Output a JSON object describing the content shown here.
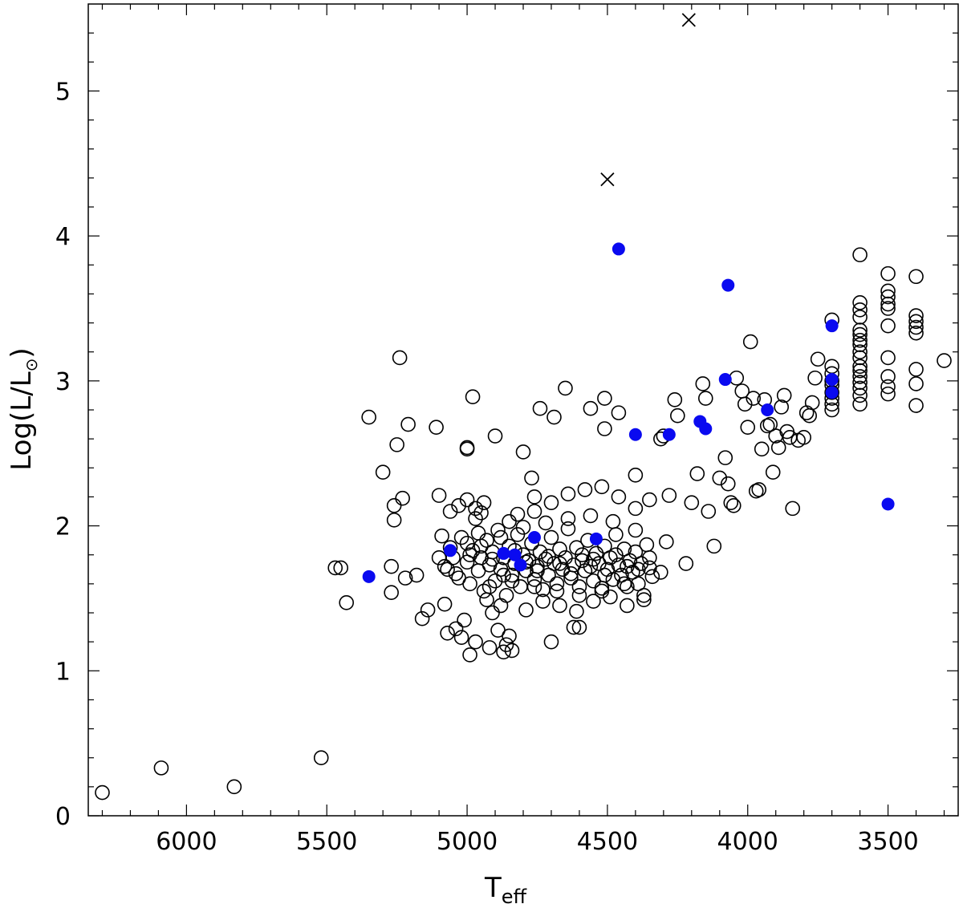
{
  "chart_data": {
    "type": "scatter",
    "title": "",
    "xlabel": "T",
    "xlabel_sub": "eff",
    "ylabel": "Log(L/L",
    "ylabel_symbol": "⊙",
    "ylabel_close": ")",
    "xlim": [
      6350,
      3250
    ],
    "ylim": [
      0,
      5.6
    ],
    "x_reversed": true,
    "grid": false,
    "legend": "none",
    "x_ticks": [
      6000,
      5500,
      5000,
      4500,
      4000,
      3500
    ],
    "x_tick_labels": [
      "6000",
      "5500",
      "5000",
      "4500",
      "4000",
      "3500"
    ],
    "y_ticks": [
      0,
      1,
      2,
      3,
      4,
      5
    ],
    "y_tick_labels": [
      "0",
      "1",
      "2",
      "3",
      "4",
      "5"
    ],
    "colors": {
      "open": "#000000",
      "filled": "#0a0af0",
      "cross": "#000000"
    },
    "series": [
      {
        "marker": "open-circle",
        "points": [
          [
            6300,
            0.16
          ],
          [
            6090,
            0.33
          ],
          [
            5830,
            0.2
          ],
          [
            5520,
            0.4
          ],
          [
            5470,
            1.71
          ],
          [
            5450,
            1.71
          ],
          [
            5430,
            1.47
          ],
          [
            5350,
            2.75
          ],
          [
            5300,
            2.37
          ],
          [
            5270,
            1.72
          ],
          [
            5270,
            1.54
          ],
          [
            5260,
            2.04
          ],
          [
            5260,
            2.14
          ],
          [
            5250,
            2.56
          ],
          [
            5240,
            3.16
          ],
          [
            5230,
            2.19
          ],
          [
            5220,
            1.64
          ],
          [
            5210,
            2.7
          ],
          [
            5180,
            1.66
          ],
          [
            5160,
            1.36
          ],
          [
            5140,
            1.42
          ],
          [
            5110,
            2.68
          ],
          [
            5100,
            2.21
          ],
          [
            5090,
            1.93
          ],
          [
            5080,
            1.46
          ],
          [
            5070,
            1.26
          ],
          [
            5050,
            1.78
          ],
          [
            5040,
            1.29
          ],
          [
            5020,
            1.23
          ],
          [
            5010,
            1.35
          ],
          [
            5000,
            2.53
          ],
          [
            5000,
            2.54
          ],
          [
            4990,
            1.11
          ],
          [
            4980,
            2.89
          ],
          [
            4970,
            1.2
          ],
          [
            4950,
            2.09
          ],
          [
            4930,
            1.49
          ],
          [
            4920,
            1.16
          ],
          [
            4900,
            2.62
          ],
          [
            4890,
            1.28
          ],
          [
            4870,
            1.13
          ],
          [
            4860,
            1.18
          ],
          [
            4850,
            1.24
          ],
          [
            4840,
            1.14
          ],
          [
            4800,
            2.51
          ],
          [
            4770,
            2.33
          ],
          [
            4760,
            2.2
          ],
          [
            4740,
            2.81
          ],
          [
            4700,
            1.2
          ],
          [
            4690,
            2.75
          ],
          [
            4650,
            2.95
          ],
          [
            4620,
            1.3
          ],
          [
            4600,
            1.3
          ],
          [
            4560,
            2.81
          ],
          [
            4510,
            2.67
          ],
          [
            4510,
            2.88
          ],
          [
            4460,
            2.78
          ],
          [
            4400,
            2.35
          ],
          [
            4350,
            2.18
          ],
          [
            4310,
            2.6
          ],
          [
            4300,
            2.62
          ],
          [
            4290,
            1.89
          ],
          [
            4280,
            2.21
          ],
          [
            4260,
            2.87
          ],
          [
            4250,
            2.76
          ],
          [
            4220,
            1.74
          ],
          [
            4200,
            2.16
          ],
          [
            4180,
            2.36
          ],
          [
            4160,
            2.98
          ],
          [
            4150,
            2.88
          ],
          [
            4140,
            2.1
          ],
          [
            4120,
            1.86
          ],
          [
            4100,
            2.33
          ],
          [
            4080,
            2.47
          ],
          [
            4070,
            2.29
          ],
          [
            4060,
            2.16
          ],
          [
            4050,
            2.14
          ],
          [
            4040,
            3.02
          ],
          [
            4020,
            2.93
          ],
          [
            4010,
            2.84
          ],
          [
            4000,
            2.68
          ],
          [
            3990,
            3.27
          ],
          [
            3980,
            2.88
          ],
          [
            3970,
            2.24
          ],
          [
            3960,
            2.25
          ],
          [
            3950,
            2.53
          ],
          [
            3940,
            2.87
          ],
          [
            3930,
            2.69
          ],
          [
            3920,
            2.7
          ],
          [
            3910,
            2.37
          ],
          [
            3900,
            2.62
          ],
          [
            3890,
            2.54
          ],
          [
            3880,
            2.82
          ],
          [
            3870,
            2.9
          ],
          [
            3860,
            2.65
          ],
          [
            3850,
            2.61
          ],
          [
            3840,
            2.12
          ],
          [
            3820,
            2.59
          ],
          [
            3800,
            2.61
          ],
          [
            3790,
            2.78
          ],
          [
            3780,
            2.76
          ],
          [
            3770,
            2.85
          ],
          [
            3760,
            3.02
          ],
          [
            3750,
            3.15
          ],
          [
            3700,
            3.42
          ],
          [
            3700,
            3.1
          ],
          [
            3700,
            3.05
          ],
          [
            3700,
            3.0
          ],
          [
            3700,
            2.97
          ],
          [
            3700,
            2.92
          ],
          [
            3700,
            2.88
          ],
          [
            3700,
            2.84
          ],
          [
            3700,
            2.8
          ],
          [
            3600,
            3.87
          ],
          [
            3600,
            3.54
          ],
          [
            3600,
            3.49
          ],
          [
            3600,
            3.44
          ],
          [
            3600,
            3.35
          ],
          [
            3600,
            3.32
          ],
          [
            3600,
            3.28
          ],
          [
            3600,
            3.25
          ],
          [
            3600,
            3.2
          ],
          [
            3600,
            3.16
          ],
          [
            3600,
            3.1
          ],
          [
            3600,
            3.07
          ],
          [
            3600,
            3.03
          ],
          [
            3600,
            2.99
          ],
          [
            3600,
            2.95
          ],
          [
            3600,
            2.9
          ],
          [
            3600,
            2.84
          ],
          [
            3500,
            3.74
          ],
          [
            3500,
            3.62
          ],
          [
            3500,
            3.58
          ],
          [
            3500,
            3.53
          ],
          [
            3500,
            3.5
          ],
          [
            3500,
            3.38
          ],
          [
            3500,
            3.16
          ],
          [
            3500,
            3.03
          ],
          [
            3500,
            2.96
          ],
          [
            3500,
            2.91
          ],
          [
            3400,
            3.72
          ],
          [
            3400,
            3.45
          ],
          [
            3400,
            3.41
          ],
          [
            3400,
            3.37
          ],
          [
            3400,
            3.33
          ],
          [
            3400,
            3.08
          ],
          [
            3400,
            2.98
          ],
          [
            3400,
            2.83
          ],
          [
            3300,
            3.14
          ],
          [
            5100,
            1.78
          ],
          [
            5080,
            1.72
          ],
          [
            5060,
            1.85
          ],
          [
            5040,
            1.67
          ],
          [
            5020,
            1.92
          ],
          [
            5000,
            1.75
          ],
          [
            4990,
            1.6
          ],
          [
            4980,
            1.83
          ],
          [
            4970,
            2.05
          ],
          [
            4960,
            1.69
          ],
          [
            4950,
            1.78
          ],
          [
            4940,
            1.55
          ],
          [
            4930,
            1.9
          ],
          [
            4920,
            1.73
          ],
          [
            4910,
            1.82
          ],
          [
            4900,
            1.62
          ],
          [
            4890,
            1.97
          ],
          [
            4880,
            1.7
          ],
          [
            4870,
            1.78
          ],
          [
            4860,
            1.52
          ],
          [
            4850,
            1.86
          ],
          [
            4840,
            1.66
          ],
          [
            4830,
            1.74
          ],
          [
            4820,
            1.94
          ],
          [
            4810,
            1.58
          ],
          [
            4800,
            1.8
          ],
          [
            4790,
            1.69
          ],
          [
            4780,
            1.76
          ],
          [
            4770,
            1.88
          ],
          [
            4760,
            1.63
          ],
          [
            4750,
            1.72
          ],
          [
            4740,
            1.82
          ],
          [
            4730,
            1.56
          ],
          [
            4720,
            1.77
          ],
          [
            4710,
            1.66
          ],
          [
            4700,
            1.92
          ],
          [
            4690,
            1.74
          ],
          [
            4680,
            1.6
          ],
          [
            4670,
            1.84
          ],
          [
            4660,
            1.7
          ],
          [
            4650,
            1.78
          ],
          [
            4640,
            1.98
          ],
          [
            4630,
            1.64
          ],
          [
            4620,
            1.73
          ],
          [
            4610,
            1.85
          ],
          [
            4600,
            1.58
          ],
          [
            4590,
            1.76
          ],
          [
            4580,
            1.69
          ],
          [
            4570,
            1.9
          ],
          [
            4560,
            1.72
          ],
          [
            4550,
            1.62
          ],
          [
            4540,
            1.81
          ],
          [
            4530,
            1.74
          ],
          [
            4520,
            1.55
          ],
          [
            4510,
            1.86
          ],
          [
            4500,
            1.7
          ],
          [
            4490,
            1.78
          ],
          [
            4480,
            1.63
          ],
          [
            4470,
            1.94
          ],
          [
            4460,
            1.73
          ],
          [
            4450,
            1.66
          ],
          [
            4440,
            1.84
          ],
          [
            4430,
            1.58
          ],
          [
            4420,
            1.76
          ],
          [
            4410,
            1.68
          ],
          [
            4400,
            1.82
          ],
          [
            4390,
            1.6
          ],
          [
            4380,
            1.74
          ],
          [
            4370,
            1.52
          ],
          [
            4360,
            1.87
          ],
          [
            4350,
            1.71
          ],
          [
            4340,
            1.65
          ],
          [
            5060,
            2.1
          ],
          [
            5030,
            2.14
          ],
          [
            5000,
            2.18
          ],
          [
            4970,
            2.12
          ],
          [
            4940,
            2.16
          ],
          [
            4910,
            1.4
          ],
          [
            4880,
            1.45
          ],
          [
            4850,
            2.03
          ],
          [
            4820,
            2.08
          ],
          [
            4790,
            1.42
          ],
          [
            4760,
            2.1
          ],
          [
            4730,
            1.48
          ],
          [
            4700,
            2.16
          ],
          [
            4670,
            1.45
          ],
          [
            4640,
            2.22
          ],
          [
            4610,
            1.41
          ],
          [
            4580,
            2.25
          ],
          [
            4550,
            1.48
          ],
          [
            4520,
            2.27
          ],
          [
            4490,
            1.51
          ],
          [
            4460,
            2.2
          ],
          [
            4430,
            1.45
          ],
          [
            4400,
            2.12
          ],
          [
            4370,
            1.49
          ],
          [
            5000,
            1.88
          ],
          [
            4960,
            1.95
          ],
          [
            4920,
            1.58
          ],
          [
            4880,
            1.92
          ],
          [
            4840,
            1.62
          ],
          [
            4800,
            1.99
          ],
          [
            4760,
            1.58
          ],
          [
            4720,
            2.02
          ],
          [
            4680,
            1.55
          ],
          [
            4640,
            2.05
          ],
          [
            4600,
            1.52
          ],
          [
            4560,
            2.07
          ],
          [
            4520,
            1.57
          ],
          [
            4480,
            2.03
          ],
          [
            4440,
            1.6
          ],
          [
            4400,
            1.97
          ],
          [
            5070,
            1.7
          ],
          [
            5030,
            1.64
          ],
          [
            4990,
            1.8
          ],
          [
            4950,
            1.86
          ],
          [
            4910,
            1.77
          ],
          [
            4870,
            1.66
          ],
          [
            4830,
            1.83
          ],
          [
            4790,
            1.75
          ],
          [
            4750,
            1.69
          ],
          [
            4710,
            1.79
          ],
          [
            4670,
            1.74
          ],
          [
            4630,
            1.67
          ],
          [
            4590,
            1.8
          ],
          [
            4550,
            1.77
          ],
          [
            4510,
            1.66
          ],
          [
            4470,
            1.8
          ],
          [
            4430,
            1.72
          ],
          [
            4390,
            1.7
          ],
          [
            4350,
            1.78
          ],
          [
            4310,
            1.68
          ]
        ]
      },
      {
        "marker": "filled-circle",
        "points": [
          [
            5350,
            1.65
          ],
          [
            5060,
            1.83
          ],
          [
            4870,
            1.81
          ],
          [
            4830,
            1.8
          ],
          [
            4810,
            1.73
          ],
          [
            4760,
            1.92
          ],
          [
            4540,
            1.91
          ],
          [
            4460,
            3.91
          ],
          [
            4400,
            2.63
          ],
          [
            4280,
            2.63
          ],
          [
            4170,
            2.72
          ],
          [
            4150,
            2.67
          ],
          [
            4080,
            3.01
          ],
          [
            4070,
            3.66
          ],
          [
            3930,
            2.8
          ],
          [
            3700,
            3.38
          ],
          [
            3700,
            3.01
          ],
          [
            3700,
            2.92
          ],
          [
            3500,
            2.15
          ]
        ]
      },
      {
        "marker": "cross",
        "points": [
          [
            4500,
            4.39
          ],
          [
            4210,
            5.49
          ]
        ]
      }
    ]
  }
}
